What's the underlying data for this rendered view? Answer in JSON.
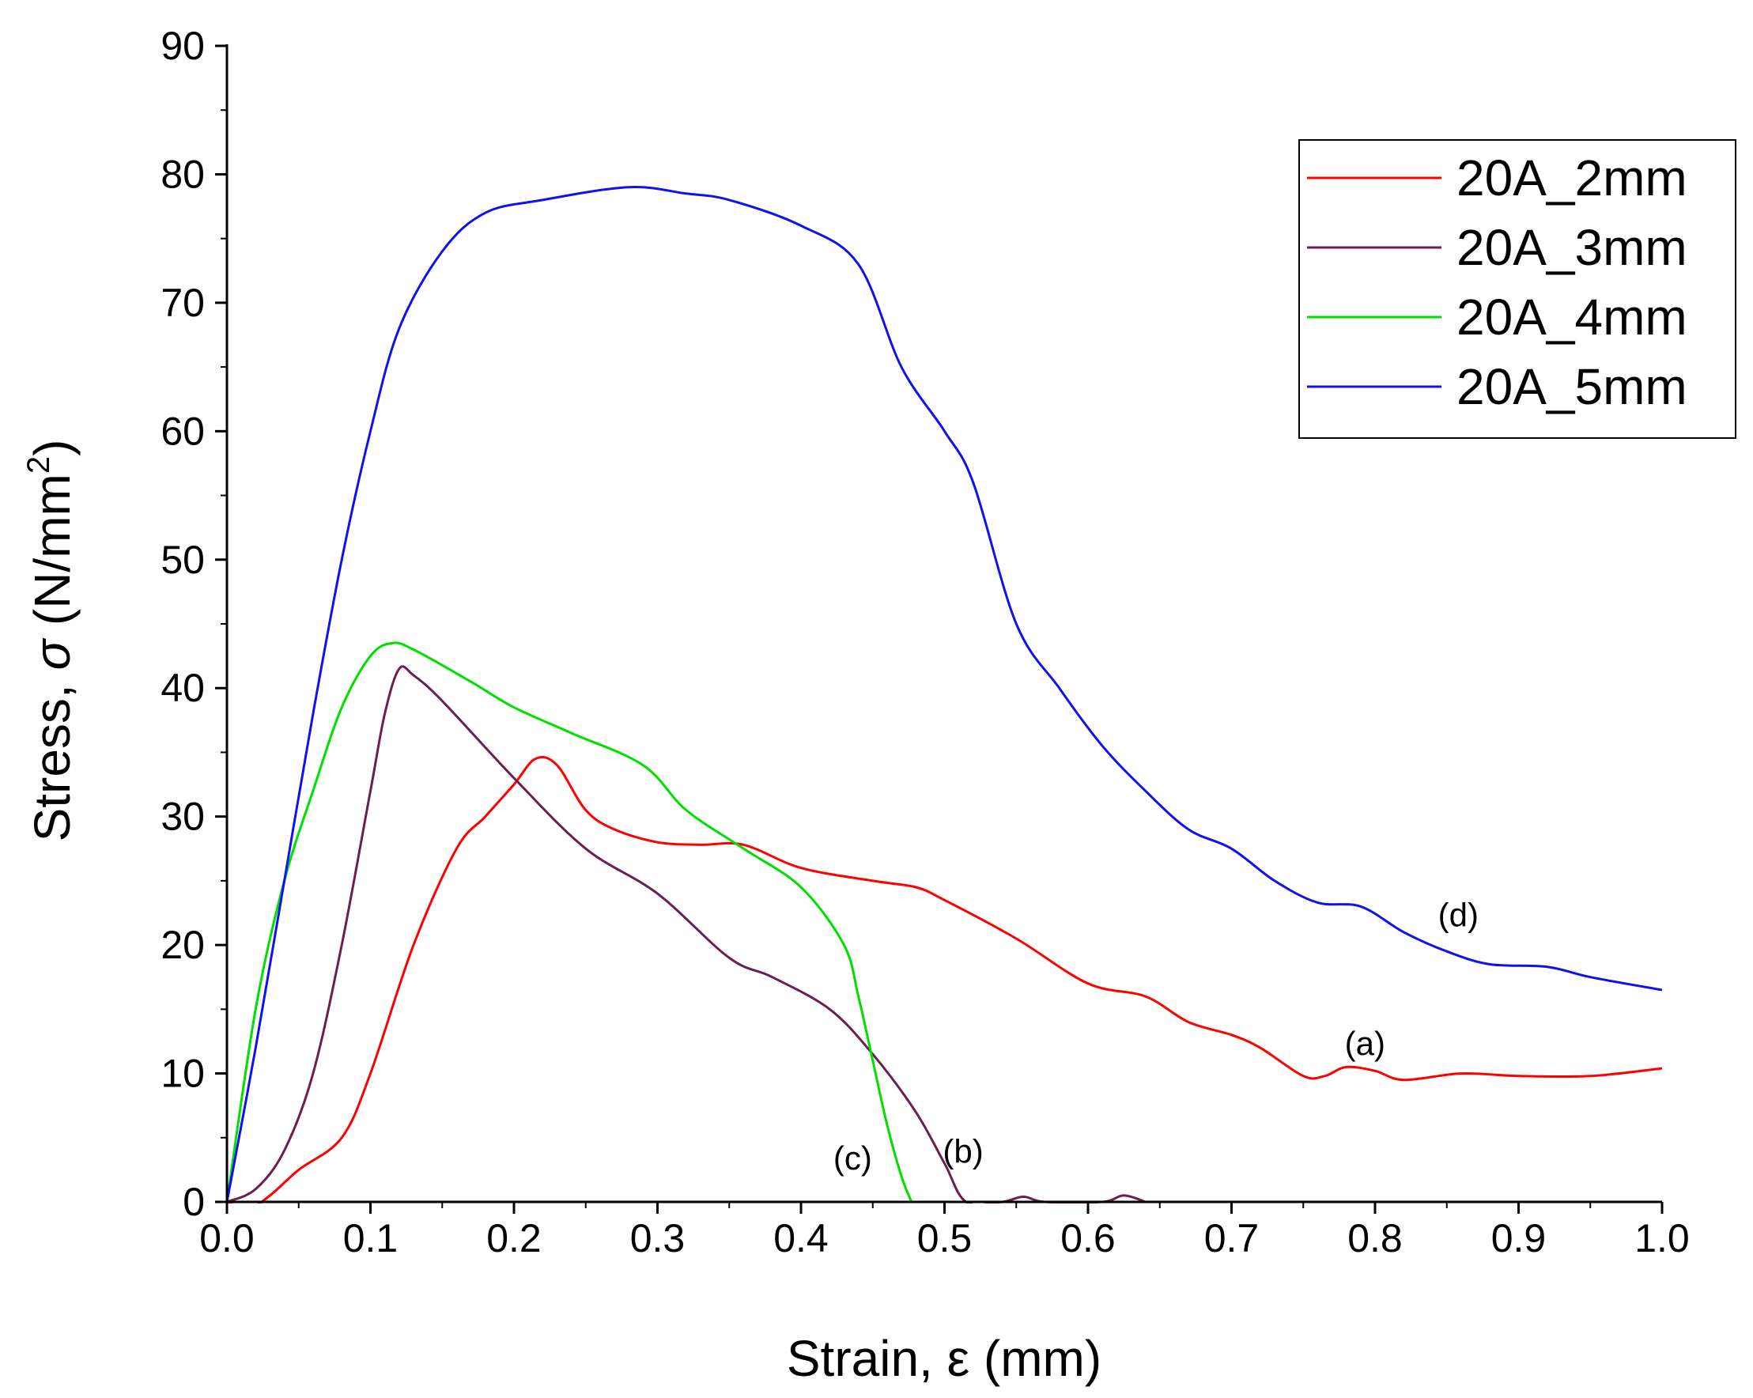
{
  "chart_data": {
    "type": "line",
    "title": "",
    "xlabel": "Strain, ε (mm)",
    "ylabel": {
      "prefix": "Stress, ",
      "symbol": "σ",
      "unit": " (N/mm",
      "power": "2",
      "close": ")"
    },
    "xlim": [
      0,
      1.0
    ],
    "ylim": [
      0,
      90
    ],
    "x_ticks": [
      "0.0",
      "0.1",
      "0.2",
      "0.3",
      "0.4",
      "0.5",
      "0.6",
      "0.7",
      "0.8",
      "0.9",
      "1.0"
    ],
    "y_ticks": [
      "0",
      "10",
      "20",
      "30",
      "40",
      "50",
      "60",
      "70",
      "80",
      "90"
    ],
    "grid": false,
    "legend_position": "top-right",
    "series": [
      {
        "name": "20A_2mm",
        "color": "#ff0000",
        "points": [
          [
            0,
            0
          ],
          [
            0.015,
            -0.5
          ],
          [
            0.03,
            0.5
          ],
          [
            0.05,
            2.5
          ],
          [
            0.08,
            5
          ],
          [
            0.1,
            10
          ],
          [
            0.13,
            20
          ],
          [
            0.16,
            27.5
          ],
          [
            0.18,
            30
          ],
          [
            0.2,
            32.5
          ],
          [
            0.215,
            34.5
          ],
          [
            0.23,
            34
          ],
          [
            0.25,
            30.5
          ],
          [
            0.27,
            29
          ],
          [
            0.3,
            28
          ],
          [
            0.33,
            27.8
          ],
          [
            0.36,
            27.8
          ],
          [
            0.4,
            26
          ],
          [
            0.45,
            25
          ],
          [
            0.48,
            24.5
          ],
          [
            0.5,
            23.5
          ],
          [
            0.55,
            20.5
          ],
          [
            0.6,
            17
          ],
          [
            0.64,
            16
          ],
          [
            0.67,
            14
          ],
          [
            0.7,
            13
          ],
          [
            0.72,
            12
          ],
          [
            0.75,
            9.8
          ],
          [
            0.765,
            9.8
          ],
          [
            0.78,
            10.5
          ],
          [
            0.8,
            10.2
          ],
          [
            0.82,
            9.5
          ],
          [
            0.86,
            10
          ],
          [
            0.9,
            9.8
          ],
          [
            0.95,
            9.8
          ],
          [
            1.0,
            10.4
          ]
        ]
      },
      {
        "name": "20A_3mm",
        "color": "#6b1f4e",
        "points": [
          [
            0,
            0
          ],
          [
            0.02,
            1
          ],
          [
            0.04,
            4
          ],
          [
            0.06,
            10
          ],
          [
            0.08,
            20
          ],
          [
            0.1,
            32
          ],
          [
            0.11,
            38
          ],
          [
            0.12,
            41.5
          ],
          [
            0.13,
            41
          ],
          [
            0.15,
            39
          ],
          [
            0.2,
            33
          ],
          [
            0.25,
            27.5
          ],
          [
            0.3,
            24
          ],
          [
            0.35,
            19
          ],
          [
            0.38,
            17.5
          ],
          [
            0.42,
            15
          ],
          [
            0.45,
            11.5
          ],
          [
            0.48,
            7
          ],
          [
            0.5,
            3
          ],
          [
            0.515,
            0
          ],
          [
            0.54,
            0
          ],
          [
            0.555,
            0.4
          ],
          [
            0.57,
            0
          ],
          [
            0.61,
            0
          ],
          [
            0.625,
            0.5
          ],
          [
            0.64,
            0
          ]
        ]
      },
      {
        "name": "20A_4mm",
        "color": "#00e000",
        "points": [
          [
            0,
            0
          ],
          [
            0.02,
            15
          ],
          [
            0.04,
            25
          ],
          [
            0.06,
            32
          ],
          [
            0.08,
            38.5
          ],
          [
            0.1,
            42.5
          ],
          [
            0.115,
            43.5
          ],
          [
            0.13,
            43
          ],
          [
            0.17,
            40.5
          ],
          [
            0.2,
            38.5
          ],
          [
            0.24,
            36.5
          ],
          [
            0.29,
            34
          ],
          [
            0.32,
            30.5
          ],
          [
            0.36,
            27.5
          ],
          [
            0.4,
            24.5
          ],
          [
            0.43,
            20
          ],
          [
            0.44,
            16
          ],
          [
            0.45,
            11
          ],
          [
            0.46,
            6
          ],
          [
            0.47,
            2
          ],
          [
            0.477,
            0
          ]
        ]
      },
      {
        "name": "20A_5mm",
        "color": "#1010f0",
        "points": [
          [
            0,
            0
          ],
          [
            0.02,
            12
          ],
          [
            0.04,
            25
          ],
          [
            0.06,
            38
          ],
          [
            0.08,
            50
          ],
          [
            0.1,
            60
          ],
          [
            0.12,
            68
          ],
          [
            0.15,
            74
          ],
          [
            0.18,
            77
          ],
          [
            0.22,
            78
          ],
          [
            0.28,
            79
          ],
          [
            0.32,
            78.5
          ],
          [
            0.35,
            78
          ],
          [
            0.4,
            76
          ],
          [
            0.44,
            73
          ],
          [
            0.47,
            65
          ],
          [
            0.5,
            60
          ],
          [
            0.52,
            56
          ],
          [
            0.55,
            45
          ],
          [
            0.58,
            40
          ],
          [
            0.61,
            35.5
          ],
          [
            0.64,
            32
          ],
          [
            0.67,
            29
          ],
          [
            0.7,
            27.5
          ],
          [
            0.73,
            25
          ],
          [
            0.76,
            23.3
          ],
          [
            0.79,
            23
          ],
          [
            0.82,
            21
          ],
          [
            0.85,
            19.5
          ],
          [
            0.88,
            18.5
          ],
          [
            0.92,
            18.3
          ],
          [
            0.95,
            17.5
          ],
          [
            1.0,
            16.5
          ]
        ]
      }
    ],
    "annotations": [
      {
        "text": "(a)",
        "x": 0.793,
        "y": 12.3
      },
      {
        "text": "(b)",
        "x": 0.513,
        "y": 3.9
      },
      {
        "text": "(c)",
        "x": 0.436,
        "y": 3.4
      },
      {
        "text": "(d)",
        "x": 0.858,
        "y": 22.3
      }
    ]
  }
}
